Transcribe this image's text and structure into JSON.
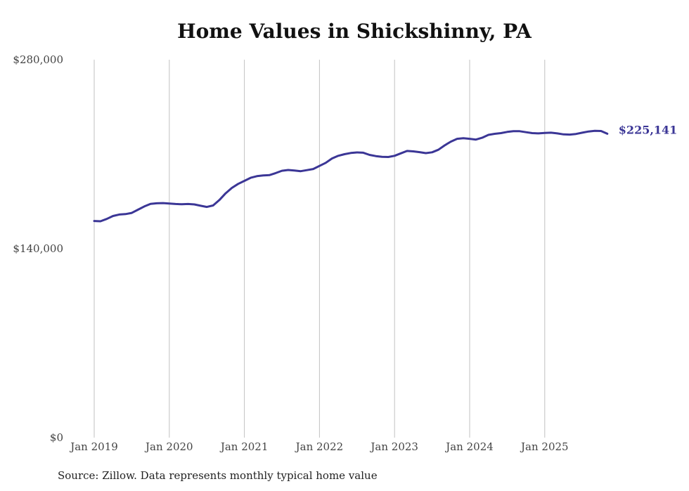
{
  "chart_data": {
    "type": "line",
    "title": "Home Values in Shickshinny, PA",
    "source": "Source: Zillow. Data represents monthly typical home value",
    "xlabel": "",
    "ylabel": "",
    "ylim": [
      0,
      280000
    ],
    "yticks": [
      {
        "value": 0,
        "label": "$0"
      },
      {
        "value": 140000,
        "label": "$140,000"
      },
      {
        "value": 280000,
        "label": "$280,000"
      }
    ],
    "xticks": [
      {
        "value": "2019-01",
        "label": "Jan 2019"
      },
      {
        "value": "2020-01",
        "label": "Jan 2020"
      },
      {
        "value": "2021-01",
        "label": "Jan 2021"
      },
      {
        "value": "2022-01",
        "label": "Jan 2022"
      },
      {
        "value": "2023-01",
        "label": "Jan 2023"
      },
      {
        "value": "2024-01",
        "label": "Jan 2024"
      },
      {
        "value": "2025-01",
        "label": "Jan 2025"
      }
    ],
    "grid": "vertical",
    "line_color": "#3b3696",
    "end_label": "$225,141",
    "series": [
      {
        "x": [
          "2019-01",
          "2019-02",
          "2019-03",
          "2019-04",
          "2019-05",
          "2019-06",
          "2019-07",
          "2019-08",
          "2019-09",
          "2019-10",
          "2019-11",
          "2019-12",
          "2020-01",
          "2020-02",
          "2020-03",
          "2020-04",
          "2020-05",
          "2020-06",
          "2020-07",
          "2020-08",
          "2020-09",
          "2020-10",
          "2020-11",
          "2020-12",
          "2021-01",
          "2021-02",
          "2021-03",
          "2021-04",
          "2021-05",
          "2021-06",
          "2021-07",
          "2021-08",
          "2021-09",
          "2021-10",
          "2021-11",
          "2021-12",
          "2022-01",
          "2022-02",
          "2022-03",
          "2022-04",
          "2022-05",
          "2022-06",
          "2022-07",
          "2022-08",
          "2022-09",
          "2022-10",
          "2022-11",
          "2022-12",
          "2023-01",
          "2023-02",
          "2023-03",
          "2023-04",
          "2023-05",
          "2023-06",
          "2023-07",
          "2023-08",
          "2023-09",
          "2023-10",
          "2023-11",
          "2023-12",
          "2024-01",
          "2024-02",
          "2024-03",
          "2024-04",
          "2024-05",
          "2024-06",
          "2024-07",
          "2024-08",
          "2024-09",
          "2024-10",
          "2024-11",
          "2024-12",
          "2025-01",
          "2025-02",
          "2025-03",
          "2025-04",
          "2025-05",
          "2025-06",
          "2025-07",
          "2025-08",
          "2025-09",
          "2025-10",
          "2025-11"
        ],
        "values": [
          160500,
          160300,
          162000,
          164200,
          165300,
          165600,
          166500,
          168900,
          171300,
          173200,
          173600,
          173800,
          173400,
          173100,
          172900,
          173100,
          172800,
          171800,
          170900,
          172000,
          176000,
          181000,
          185000,
          188000,
          190200,
          192500,
          193700,
          194300,
          194500,
          196000,
          197700,
          198300,
          197900,
          197400,
          198200,
          199000,
          201300,
          203600,
          206800,
          208800,
          210000,
          210900,
          211300,
          211100,
          209500,
          208600,
          208000,
          207900,
          208800,
          210600,
          212400,
          212100,
          211500,
          210800,
          211400,
          213300,
          216500,
          219300,
          221400,
          221800,
          221400,
          220800,
          222200,
          224300,
          225100,
          225600,
          226500,
          227000,
          227000,
          226300,
          225600,
          225400,
          225700,
          225900,
          225400,
          224700,
          224500,
          225000,
          225900,
          226800,
          227300,
          227200,
          225141
        ]
      }
    ]
  }
}
